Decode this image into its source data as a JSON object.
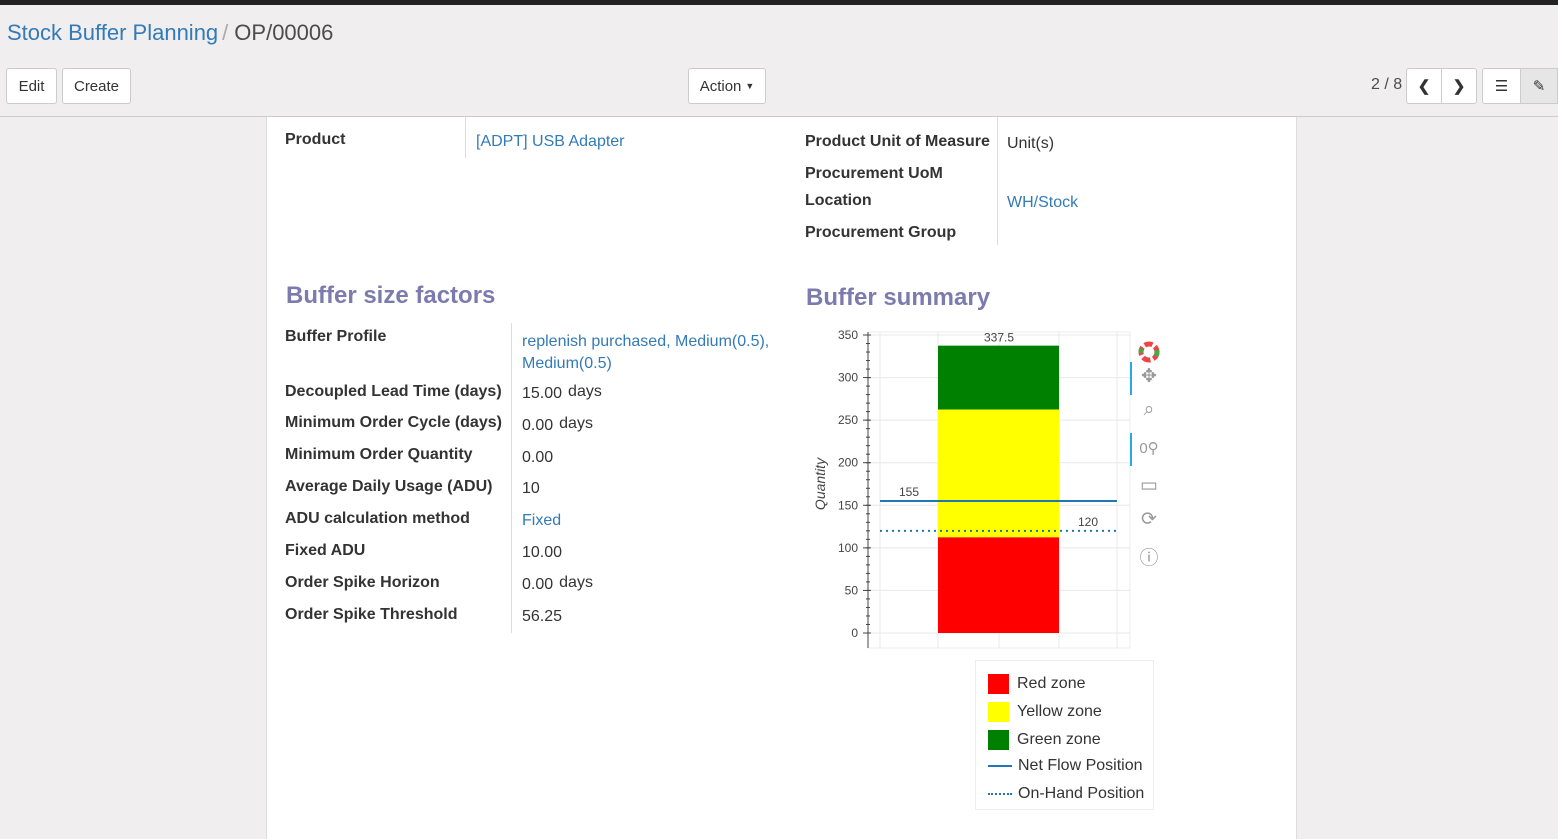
{
  "breadcrumb": {
    "parent": "Stock Buffer Planning",
    "current": "OP/00006"
  },
  "toolbar": {
    "edit": "Edit",
    "create": "Create",
    "action": "Action",
    "pager": "2 / 8"
  },
  "fields_top": {
    "product_label": "Product",
    "product_value": "[ADPT] USB Adapter",
    "uom_label": "Product Unit of Measure",
    "uom_value": "Unit(s)",
    "proc_uom_label": "Procurement UoM",
    "location_label": "Location",
    "location_value": "WH/Stock",
    "proc_group_label": "Procurement Group"
  },
  "factors": {
    "title": "Buffer size factors",
    "rows": [
      {
        "label": "Buffer Profile",
        "value": "replenish purchased, Medium(0.5), Medium(0.5)",
        "unit": ""
      },
      {
        "label": "Decoupled Lead Time (days)",
        "value": "15.00",
        "unit": "days"
      },
      {
        "label": "Minimum Order Cycle (days)",
        "value": "0.00",
        "unit": "days"
      },
      {
        "label": "Minimum Order Quantity",
        "value": "0.00",
        "unit": ""
      },
      {
        "label": "Average Daily Usage (ADU)",
        "value": "10",
        "unit": ""
      },
      {
        "label": "ADU calculation method",
        "value": "Fixed",
        "unit": ""
      },
      {
        "label": "Fixed ADU",
        "value": "10.00",
        "unit": ""
      },
      {
        "label": "Order Spike Horizon",
        "value": "0.00",
        "unit": "days"
      },
      {
        "label": "Order Spike Threshold",
        "value": "56.25",
        "unit": ""
      }
    ]
  },
  "summary": {
    "title": "Buffer summary"
  },
  "chart_data": {
    "type": "bar",
    "ylabel": "Quantity",
    "ylim": [
      0,
      350
    ],
    "yticks": [
      0,
      50,
      100,
      150,
      200,
      250,
      300,
      350
    ],
    "stacked_zones": [
      {
        "name": "Red zone",
        "from": 0,
        "to": 112.5,
        "color": "#ff0000"
      },
      {
        "name": "Yellow zone",
        "from": 112.5,
        "to": 262.5,
        "color": "#ffff00"
      },
      {
        "name": "Green zone",
        "from": 262.5,
        "to": 337.5,
        "color": "#008000"
      }
    ],
    "zone_labels": [
      "112.5",
      "262.5",
      "337.5"
    ],
    "lines": [
      {
        "name": "Net Flow Position",
        "value": 155,
        "label": "155",
        "style": "solid",
        "color": "#1f77b4"
      },
      {
        "name": "On-Hand Position",
        "value": 120,
        "label": "120",
        "style": "dotted",
        "color": "#1f77b4"
      }
    ],
    "legend_position": "bottom",
    "grid": true
  },
  "chart_tools": [
    "bokeh-logo-icon",
    "pan-icon",
    "box-zoom-icon",
    "wheel-zoom-icon",
    "save-icon",
    "reset-icon",
    "help-icon"
  ]
}
